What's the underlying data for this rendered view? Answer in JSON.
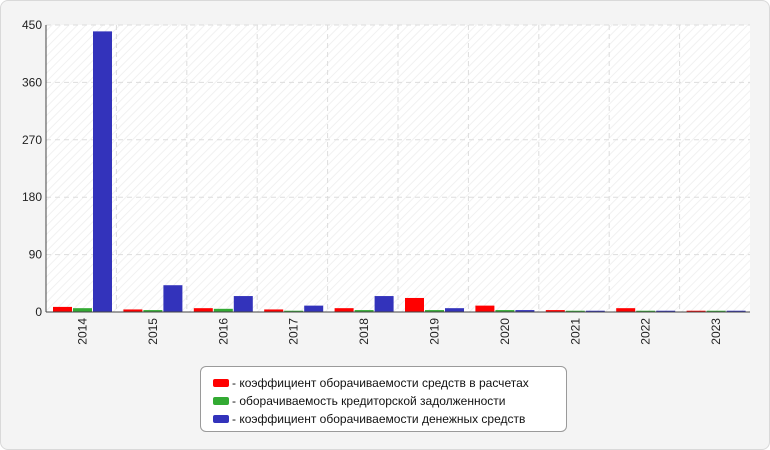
{
  "chart_data": {
    "type": "bar",
    "categories": [
      "2014",
      "2015",
      "2016",
      "2017",
      "2018",
      "2019",
      "2020",
      "2021",
      "2022",
      "2023"
    ],
    "series": [
      {
        "name": "- коэффициент оборачиваемости средств в расчетах",
        "color": "#ff0000",
        "values": [
          8,
          4,
          6,
          4,
          6,
          22,
          10,
          3,
          6,
          2
        ]
      },
      {
        "name": "- оборачиваемость кредиторской задолженности",
        "color": "#33aa33",
        "values": [
          6,
          3,
          5,
          2,
          3,
          3,
          3,
          2,
          2,
          2
        ]
      },
      {
        "name": "- коэффициент оборачиваемости денежных средств",
        "color": "#3333bb",
        "values": [
          440,
          42,
          25,
          10,
          25,
          6,
          3,
          2,
          2,
          2
        ]
      }
    ],
    "yticks": [
      "0",
      "90",
      "180",
      "270",
      "360",
      "450"
    ],
    "ylim": [
      0,
      450
    ],
    "grid": true,
    "legend_position": "bottom"
  }
}
